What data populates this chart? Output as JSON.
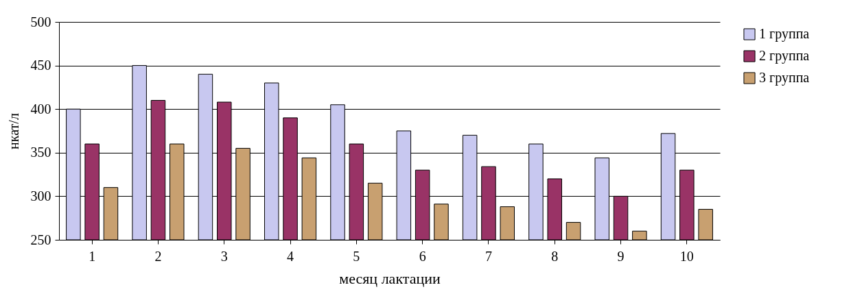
{
  "chart_data": {
    "type": "bar",
    "xlabel": "месяц лактации",
    "ylabel": "нкат/л",
    "categories": [
      "1",
      "2",
      "3",
      "4",
      "5",
      "6",
      "7",
      "8",
      "9",
      "10"
    ],
    "series": [
      {
        "name": "1 группа",
        "color": "#c8c8f0",
        "values": [
          400,
          450,
          440,
          430,
          405,
          375,
          370,
          360,
          344,
          372
        ]
      },
      {
        "name": "2 группа",
        "color": "#993366",
        "values": [
          360,
          410,
          408,
          390,
          360,
          330,
          334,
          320,
          300,
          330
        ]
      },
      {
        "name": "3 группа",
        "color": "#c8a070",
        "values": [
          310,
          360,
          355,
          344,
          315,
          291,
          288,
          270,
          260,
          285
        ]
      }
    ],
    "ylim": [
      250,
      500
    ],
    "yticks": [
      250,
      300,
      350,
      400,
      450,
      500
    ],
    "grid": "y",
    "legend": "right"
  }
}
